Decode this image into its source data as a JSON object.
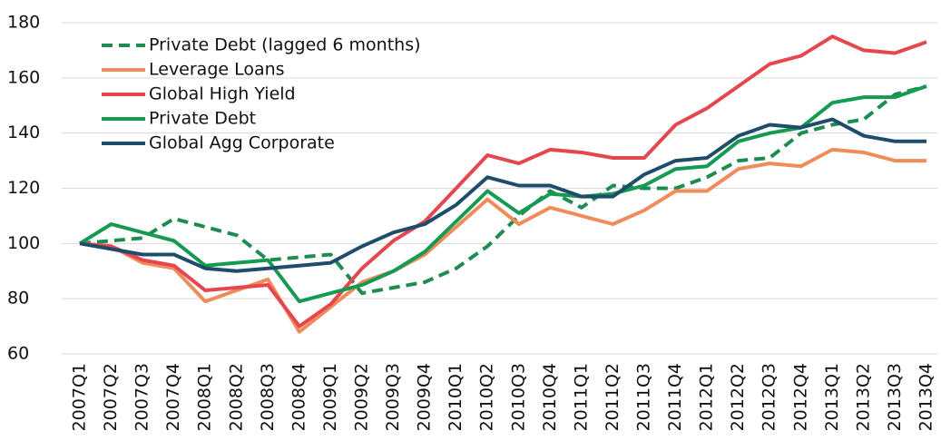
{
  "chart_data": {
    "type": "line",
    "categories": [
      "2007Q1",
      "2007Q2",
      "2007Q3",
      "2007Q4",
      "2008Q1",
      "2008Q2",
      "2008Q3",
      "2008Q4",
      "2009Q1",
      "2009Q2",
      "2009Q3",
      "2009Q4",
      "2010Q1",
      "2010Q2",
      "2010Q3",
      "2010Q4",
      "2011Q1",
      "2011Q2",
      "2011Q3",
      "2011Q4",
      "2012Q1",
      "2012Q2",
      "2012Q3",
      "2012Q4",
      "2013Q1",
      "2013Q2",
      "2013Q3",
      "2013Q4"
    ],
    "series": [
      {
        "name": "Private Debt (lagged 6 months)",
        "color": "#1e8c50",
        "line_style": "dashed",
        "values": [
          100,
          101,
          102,
          109,
          106,
          103,
          94,
          95,
          96,
          82,
          84,
          86,
          91,
          99,
          110,
          119,
          113,
          121,
          120,
          120,
          124,
          130,
          131,
          140,
          143,
          145,
          154,
          157
        ]
      },
      {
        "name": "Leverage Loans",
        "color": "#f08c5a",
        "line_style": "solid",
        "values": [
          100,
          99,
          93,
          91,
          79,
          83,
          87,
          68,
          77,
          86,
          90,
          96,
          106,
          116,
          107,
          113,
          110,
          107,
          112,
          119,
          119,
          127,
          129,
          128,
          134,
          133,
          130,
          130
        ]
      },
      {
        "name": "Global High Yield",
        "color": "#e5474f",
        "line_style": "solid",
        "values": [
          100,
          99,
          94,
          92,
          83,
          84,
          85,
          70,
          78,
          91,
          101,
          108,
          120,
          132,
          129,
          134,
          133,
          131,
          131,
          143,
          149,
          157,
          165,
          168,
          175,
          170,
          169,
          173
        ]
      },
      {
        "name": "Private Debt",
        "color": "#169a52",
        "line_style": "solid",
        "values": [
          100,
          107,
          104,
          101,
          92,
          93,
          94,
          79,
          82,
          85,
          90,
          97,
          108,
          119,
          111,
          118,
          117,
          118,
          121,
          127,
          128,
          137,
          140,
          142,
          151,
          153,
          153,
          157
        ]
      },
      {
        "name": "Global Agg Corporate",
        "color": "#1e4d6b",
        "line_style": "solid",
        "values": [
          100,
          98,
          96,
          96,
          91,
          90,
          91,
          92,
          93,
          99,
          104,
          107,
          114,
          124,
          121,
          121,
          117,
          117,
          125,
          130,
          131,
          139,
          143,
          142,
          145,
          139,
          137,
          137
        ]
      }
    ],
    "ylim": [
      60,
      180
    ],
    "yticks": [
      60,
      80,
      100,
      120,
      140,
      160,
      180
    ],
    "grid": true,
    "legend": "upper left"
  }
}
